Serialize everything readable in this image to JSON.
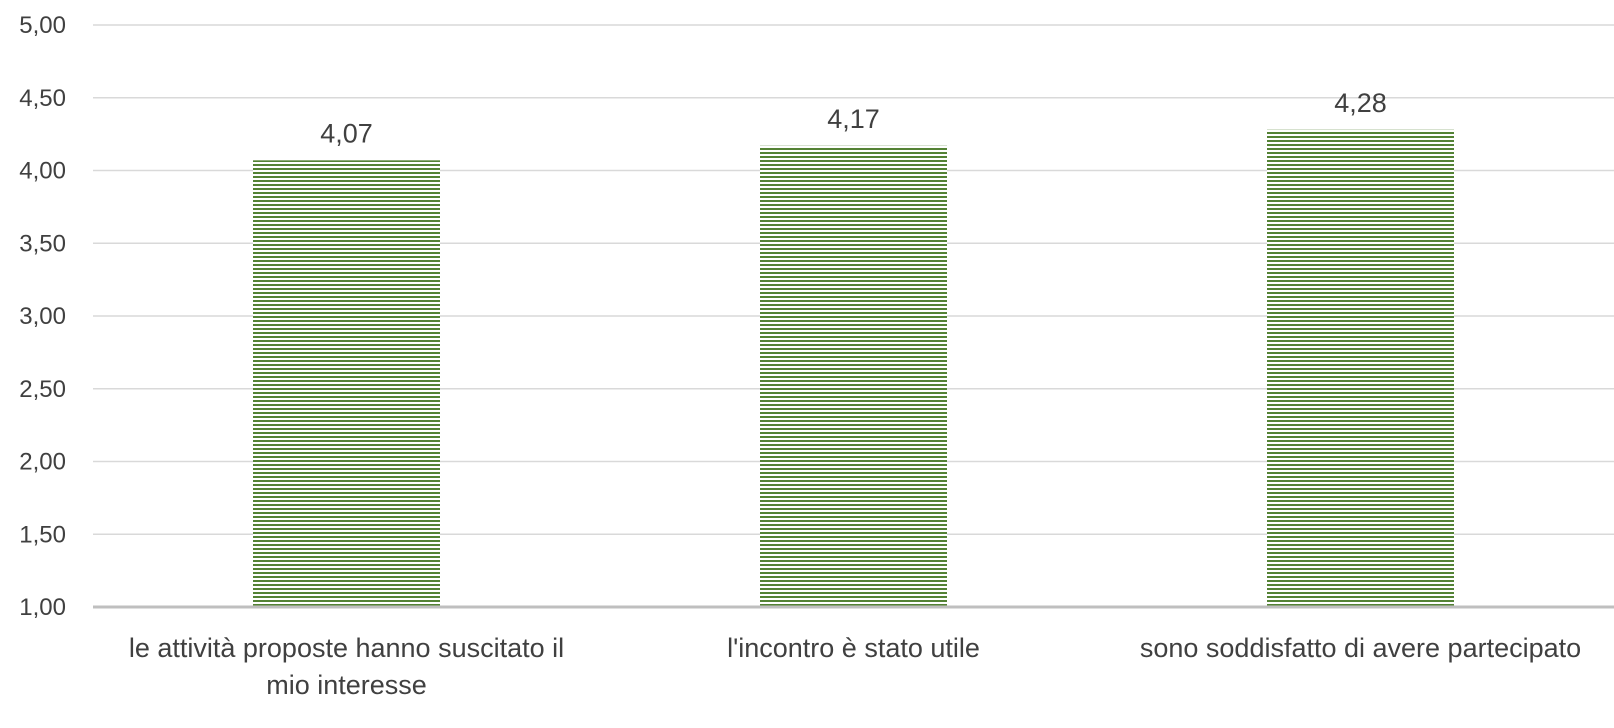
{
  "chart_data": {
    "type": "bar",
    "title": "",
    "xlabel": "",
    "ylabel": "",
    "categories": [
      [
        "le attività proposte hanno suscitato il",
        "mio interesse"
      ],
      [
        "l'incontro è stato utile"
      ],
      [
        "sono soddisfatto di avere partecipato"
      ]
    ],
    "values": [
      4.07,
      4.17,
      4.28
    ],
    "value_labels": [
      "4,07",
      "4,17",
      "4,28"
    ],
    "ylim": [
      1.0,
      5.0
    ],
    "yticks": [
      1.0,
      1.5,
      2.0,
      2.5,
      3.0,
      3.5,
      4.0,
      4.5,
      5.0
    ],
    "ytick_labels": [
      "1,00",
      "1,50",
      "2,00",
      "2,50",
      "3,00",
      "3,50",
      "4,00",
      "4,50",
      "5,00"
    ],
    "grid": true,
    "legend": "none",
    "colors": {
      "bar_stripe": "#548235",
      "bar_background": "#ffffff",
      "gridline": "#d9d9d9",
      "axis_line": "#bfbfbf",
      "text": "#404040"
    }
  }
}
